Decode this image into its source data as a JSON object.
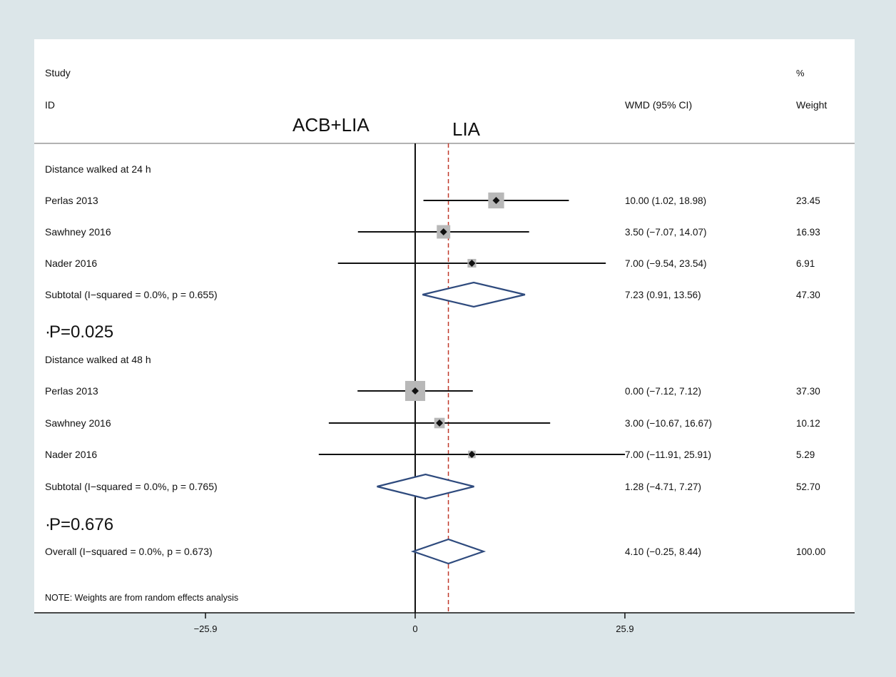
{
  "chart_data": {
    "type": "forest",
    "headers": {
      "study_top": "Study",
      "study_bottom": "ID",
      "effect": "WMD (95% CI)",
      "weight_top": "%",
      "weight_bottom": "Weight"
    },
    "favours": {
      "left": "ACB+LIA",
      "right": "LIA"
    },
    "x_ticks": [
      -25.9,
      0,
      25.9
    ],
    "x_tick_labels": [
      "−25.9",
      "0",
      "25.9"
    ],
    "xlim": [
      -47.0,
      56.0
    ],
    "overall_effect": 4.1,
    "rows": [
      {
        "kind": "group",
        "label": "Distance walked at 24 h"
      },
      {
        "kind": "study",
        "label": "Perlas 2013",
        "est": 10.0,
        "lo": 1.02,
        "hi": 18.98,
        "ci_text": "10.00 (1.02, 18.98)",
        "weight": 23.45,
        "weight_text": "23.45"
      },
      {
        "kind": "study",
        "label": "Sawhney 2016",
        "est": 3.5,
        "lo": -7.07,
        "hi": 14.07,
        "ci_text": "3.50 (−7.07, 14.07)",
        "weight": 16.93,
        "weight_text": "16.93"
      },
      {
        "kind": "study",
        "label": "Nader 2016",
        "est": 7.0,
        "lo": -9.54,
        "hi": 23.54,
        "ci_text": "7.00 (−9.54, 23.54)",
        "weight": 6.91,
        "weight_text": "6.91"
      },
      {
        "kind": "subtotal",
        "label": "Subtotal  (I−squared = 0.0%, p = 0.655)",
        "est": 7.23,
        "lo": 0.91,
        "hi": 13.56,
        "ci_text": "7.23 (0.91, 13.56)",
        "weight_text": "47.30"
      },
      {
        "kind": "pvalue",
        "label": "P=0.025"
      },
      {
        "kind": "group",
        "label": "Distance walked at 48 h"
      },
      {
        "kind": "study",
        "label": "Perlas 2013",
        "est": 0.0,
        "lo": -7.12,
        "hi": 7.12,
        "ci_text": "0.00 (−7.12, 7.12)",
        "weight": 37.3,
        "weight_text": "37.30"
      },
      {
        "kind": "study",
        "label": "Sawhney 2016",
        "est": 3.0,
        "lo": -10.67,
        "hi": 16.67,
        "ci_text": "3.00 (−10.67, 16.67)",
        "weight": 10.12,
        "weight_text": "10.12"
      },
      {
        "kind": "study",
        "label": "Nader 2016",
        "est": 7.0,
        "lo": -11.91,
        "hi": 25.91,
        "ci_text": "7.00 (−11.91, 25.91)",
        "weight": 5.29,
        "weight_text": "5.29"
      },
      {
        "kind": "subtotal",
        "label": "Subtotal  (I−squared = 0.0%, p = 0.765)",
        "est": 1.28,
        "lo": -4.71,
        "hi": 7.27,
        "ci_text": "1.28 (−4.71, 7.27)",
        "weight_text": "52.70"
      },
      {
        "kind": "pvalue",
        "label": "P=0.676"
      },
      {
        "kind": "overall",
        "label": "Overall  (I−squared = 0.0%, p = 0.673)",
        "est": 4.1,
        "lo": -0.25,
        "hi": 8.44,
        "ci_text": "4.10 (−0.25, 8.44)",
        "weight_text": "100.00"
      }
    ],
    "note": "NOTE: Weights are from random effects analysis",
    "colors": {
      "background": "#dce6e9",
      "plot_area": "#ffffff",
      "diamond": "#2e4a7d",
      "box": "#b8b8b8",
      "reference_line": "#c0392b"
    }
  }
}
